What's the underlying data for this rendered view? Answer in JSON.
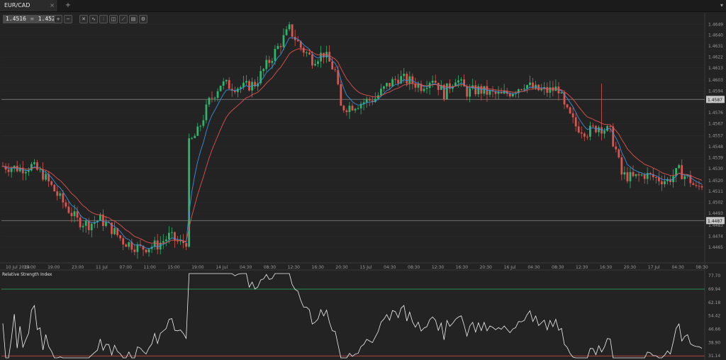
{
  "tab": {
    "title": "EUR/CAD",
    "close": "×",
    "add": "+",
    "menu": "▾"
  },
  "quote": {
    "bid": "1.4516",
    "separator": "≡",
    "ask": "1.4524"
  },
  "toolbar": [
    {
      "name": "zoom-in-icon",
      "glyph": "+"
    },
    {
      "name": "zoom-out-icon",
      "glyph": "−"
    },
    {
      "name": "crosshair-icon",
      "glyph": "✕"
    },
    {
      "name": "indicator-icon",
      "glyph": "∿"
    },
    {
      "name": "candle-type-icon",
      "glyph": "⫶"
    },
    {
      "name": "period-icon",
      "glyph": "◫"
    },
    {
      "name": "draw-icon",
      "glyph": "⟋"
    },
    {
      "name": "template-icon",
      "glyph": "▤"
    },
    {
      "name": "settings-icon",
      "glyph": "⚙"
    }
  ],
  "colors": {
    "bull": "#2fb36b",
    "bear": "#e0524d",
    "ema_fast": "#3a8fd9",
    "ema_slow": "#e0524d",
    "rsi_line": "#f0f0f0",
    "rsi_upper": "#2fb36b",
    "rsi_lower": "#e0524d",
    "grid": "#2c2c2c"
  },
  "chart_data": {
    "type": "candlestick",
    "symbol": "EUR/CAD",
    "ylim": [
      1.4455,
      1.4655
    ],
    "y_ticks": [
      "1.4649",
      "1.4640",
      "1.4631",
      "1.4622",
      "1.4613",
      "1.4603",
      "1.4594",
      "1.4585",
      "1.4576",
      "1.4567",
      "1.4557",
      "1.4548",
      "1.4539",
      "1.4530",
      "1.4520",
      "1.4511",
      "1.4502",
      "1.4493",
      "1.4483",
      "1.4474",
      "1.4465"
    ],
    "x_ticks": [
      "10 Jul 2014",
      "15:00",
      "19:00",
      "23:00",
      "11 Jul",
      "07:00",
      "11:00",
      "15:00",
      "19:00",
      "14 Jul",
      "04:30",
      "08:30",
      "12:30",
      "16:30",
      "20:30",
      "15 Jul",
      "04:30",
      "08:30",
      "12:30",
      "16:30",
      "20:30",
      "16 Jul",
      "04:30",
      "08:30",
      "12:30",
      "16:30",
      "20:30",
      "17 Jul",
      "04:30",
      "08:30"
    ],
    "horizontal_levels": [
      {
        "label": "1.4587",
        "value": 1.4587
      },
      {
        "label": "1.4487",
        "value": 1.4487
      }
    ],
    "anchors": [
      [
        0,
        1.4532
      ],
      [
        6,
        1.453
      ],
      [
        10,
        1.4532
      ],
      [
        14,
        1.4525
      ],
      [
        20,
        1.4505
      ],
      [
        26,
        1.4487
      ],
      [
        30,
        1.4484
      ],
      [
        34,
        1.4488
      ],
      [
        38,
        1.448
      ],
      [
        42,
        1.447
      ],
      [
        48,
        1.4464
      ],
      [
        54,
        1.4467
      ],
      [
        58,
        1.4474
      ],
      [
        62,
        1.4468
      ],
      [
        64,
        1.447
      ],
      [
        65,
        1.455
      ],
      [
        68,
        1.456
      ],
      [
        72,
        1.4585
      ],
      [
        76,
        1.46
      ],
      [
        80,
        1.4598
      ],
      [
        84,
        1.4597
      ],
      [
        88,
        1.46
      ],
      [
        92,
        1.4615
      ],
      [
        96,
        1.463
      ],
      [
        100,
        1.4645
      ],
      [
        104,
        1.463
      ],
      [
        108,
        1.462
      ],
      [
        112,
        1.4625
      ],
      [
        116,
        1.461
      ],
      [
        118,
        1.458
      ],
      [
        122,
        1.4582
      ],
      [
        126,
        1.4585
      ],
      [
        130,
        1.4588
      ],
      [
        134,
        1.4598
      ],
      [
        138,
        1.4605
      ],
      [
        142,
        1.4602
      ],
      [
        146,
        1.4598
      ],
      [
        150,
        1.4605
      ],
      [
        154,
        1.4592
      ],
      [
        158,
        1.4605
      ],
      [
        162,
        1.4593
      ],
      [
        166,
        1.4595
      ],
      [
        170,
        1.4592
      ],
      [
        174,
        1.459
      ],
      [
        178,
        1.4594
      ],
      [
        182,
        1.46
      ],
      [
        186,
        1.4595
      ],
      [
        190,
        1.4594
      ],
      [
        194,
        1.4596
      ],
      [
        196,
        1.458
      ],
      [
        200,
        1.4565
      ],
      [
        204,
        1.456
      ],
      [
        208,
        1.4565
      ],
      [
        212,
        1.456
      ],
      [
        214,
        1.4545
      ],
      [
        216,
        1.4525
      ],
      [
        220,
        1.4522
      ],
      [
        224,
        1.4525
      ],
      [
        228,
        1.4522
      ],
      [
        232,
        1.452
      ],
      [
        236,
        1.4528
      ],
      [
        240,
        1.452
      ],
      [
        242,
        1.4513
      ],
      [
        244,
        1.4517
      ]
    ],
    "candle_count": 245,
    "seed": 7,
    "spike": {
      "index": 209,
      "high": 1.46
    },
    "rsi": {
      "title": "Relative Strength Index",
      "ylim": [
        30,
        79
      ],
      "y_ticks": [
        "77.70",
        "69.94",
        "62.18",
        "54.42",
        "46.66",
        "38.90",
        "31.14"
      ],
      "upper_level": 69.94,
      "lower_level": 31.14
    }
  }
}
